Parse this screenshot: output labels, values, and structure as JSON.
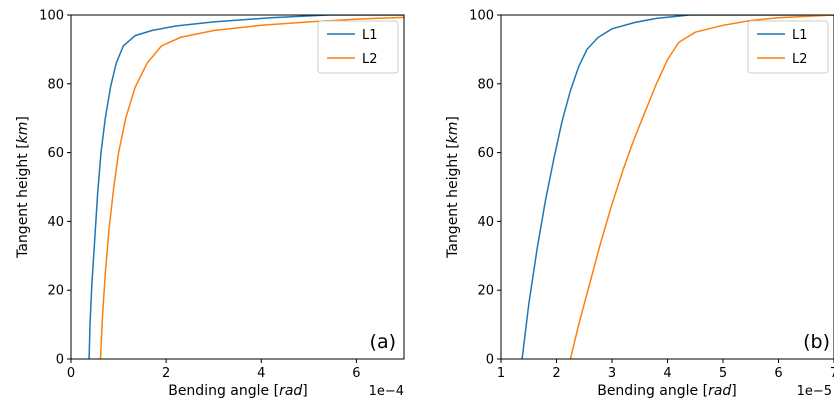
{
  "chart_data": [
    {
      "type": "line",
      "panel_label": "(a)",
      "xlabel": "Bending angle [rad]",
      "ylabel": "Tangent height [km]",
      "x_offset_text": "1e−4",
      "xlim": [
        0,
        7
      ],
      "ylim": [
        0,
        100
      ],
      "xticks": [
        0,
        2,
        4,
        6
      ],
      "yticks": [
        0,
        20,
        40,
        60,
        80,
        100
      ],
      "legend_position": "top-right",
      "series": [
        {
          "name": "L1",
          "color": "#1f77b4",
          "x": [
            0.38,
            0.4,
            0.44,
            0.5,
            0.56,
            0.63,
            0.72,
            0.83,
            0.95,
            1.1,
            1.35,
            1.7,
            2.2,
            3.0,
            4.2,
            5.4,
            7.0
          ],
          "y": [
            0,
            10,
            22,
            35,
            48,
            60,
            70,
            79,
            86,
            91,
            94,
            95.5,
            96.8,
            98,
            99.2,
            100,
            100
          ]
        },
        {
          "name": "L2",
          "color": "#ff7f0e",
          "x": [
            0.62,
            0.66,
            0.72,
            0.8,
            0.9,
            1.0,
            1.15,
            1.35,
            1.6,
            1.9,
            2.3,
            3.0,
            4.0,
            5.0,
            6.0,
            7.0
          ],
          "y": [
            0,
            12,
            25,
            38,
            50,
            60,
            70,
            79,
            86,
            91,
            93.5,
            95.5,
            97,
            98,
            98.8,
            99.3
          ]
        }
      ]
    },
    {
      "type": "line",
      "panel_label": "(b)",
      "xlabel": "Bending angle [rad]",
      "ylabel": "Tangent height [km]",
      "x_offset_text": "1e−5",
      "xlim": [
        1,
        7
      ],
      "ylim": [
        0,
        100
      ],
      "xticks": [
        1,
        2,
        3,
        4,
        5,
        6,
        7
      ],
      "yticks": [
        0,
        20,
        40,
        60,
        80,
        100
      ],
      "legend_position": "top-right",
      "series": [
        {
          "name": "L1",
          "color": "#1f77b4",
          "x": [
            1.38,
            1.5,
            1.65,
            1.8,
            1.95,
            2.1,
            2.25,
            2.4,
            2.55,
            2.75,
            3.0,
            3.4,
            3.8,
            4.4,
            7.0
          ],
          "y": [
            0,
            16,
            32,
            46,
            58,
            69,
            78,
            85,
            90,
            93.5,
            96,
            97.8,
            99,
            100,
            100
          ]
        },
        {
          "name": "L2",
          "color": "#ff7f0e",
          "x": [
            2.25,
            2.4,
            2.6,
            2.8,
            3.0,
            3.2,
            3.4,
            3.6,
            3.8,
            4.0,
            4.2,
            4.5,
            5.0,
            5.5,
            6.0,
            7.0
          ],
          "y": [
            0,
            10,
            22,
            34,
            45,
            55,
            64,
            72,
            80,
            87,
            92,
            95,
            97,
            98.4,
            99.2,
            100
          ]
        }
      ]
    }
  ]
}
